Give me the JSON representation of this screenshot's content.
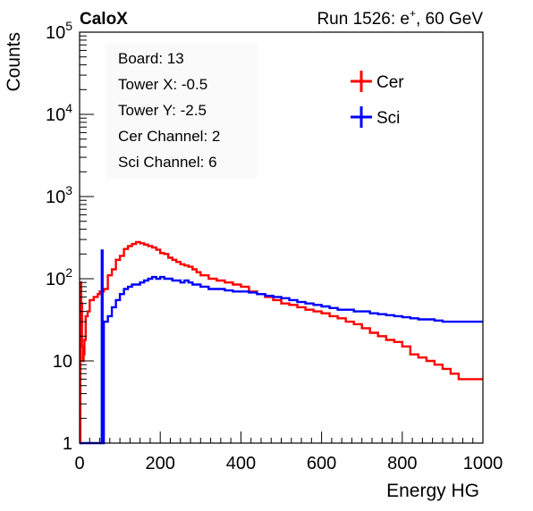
{
  "header": {
    "experiment": "CaloX",
    "run_prefix": "Run 1526: e",
    "run_sup": "+",
    "run_suffix": ", 60 GeV"
  },
  "info_box": [
    "Board: 13",
    "Tower X: -0.5",
    "Tower Y: -2.5",
    "Cer Channel: 2",
    "Sci Channel: 6"
  ],
  "chart_data": {
    "type": "line",
    "title": "",
    "xlabel": "Energy HG",
    "ylabel": "Counts",
    "xlim": [
      0,
      1000
    ],
    "ylim": [
      1,
      100000
    ],
    "yscale": "log",
    "grid": false,
    "legend_position": "top-right",
    "x_ticks": [
      0,
      200,
      400,
      600,
      800,
      1000
    ],
    "y_ticks": [
      {
        "base": "1",
        "exp": ""
      },
      {
        "base": "10",
        "exp": ""
      },
      {
        "base": "10",
        "exp": "2"
      },
      {
        "base": "10",
        "exp": "3"
      },
      {
        "base": "10",
        "exp": "4"
      },
      {
        "base": "10",
        "exp": "5"
      }
    ],
    "series": [
      {
        "name": "Cer",
        "color": "#ff0000",
        "x": [
          0,
          2,
          4,
          6,
          8,
          10,
          12,
          15,
          20,
          25,
          30,
          35,
          40,
          45,
          50,
          55,
          60,
          70,
          80,
          90,
          100,
          110,
          120,
          130,
          140,
          150,
          160,
          170,
          180,
          190,
          200,
          210,
          220,
          230,
          240,
          250,
          260,
          270,
          280,
          290,
          300,
          320,
          340,
          360,
          380,
          400,
          420,
          440,
          460,
          480,
          500,
          520,
          540,
          560,
          580,
          600,
          620,
          640,
          660,
          680,
          700,
          720,
          740,
          760,
          780,
          800,
          820,
          840,
          860,
          880,
          900,
          920,
          940,
          960,
          980,
          1000
        ],
        "y": [
          1,
          90,
          50,
          15,
          10,
          12,
          18,
          35,
          40,
          55,
          55,
          60,
          60,
          65,
          70,
          70,
          75,
          110,
          130,
          170,
          190,
          230,
          250,
          265,
          280,
          270,
          260,
          250,
          240,
          225,
          205,
          200,
          180,
          170,
          160,
          150,
          145,
          140,
          130,
          120,
          110,
          100,
          95,
          90,
          85,
          80,
          70,
          65,
          60,
          55,
          50,
          48,
          45,
          42,
          40,
          38,
          35,
          33,
          30,
          28,
          25,
          22,
          20,
          18,
          17,
          15,
          12,
          11,
          10,
          9,
          8,
          7,
          6,
          6,
          6,
          6
        ]
      },
      {
        "name": "Sci",
        "color": "#0000ff",
        "x": [
          0,
          40,
          50,
          55,
          57,
          60,
          70,
          80,
          90,
          100,
          110,
          120,
          130,
          140,
          150,
          160,
          170,
          180,
          190,
          200,
          210,
          220,
          230,
          240,
          250,
          260,
          270,
          280,
          290,
          300,
          320,
          340,
          360,
          380,
          400,
          420,
          440,
          460,
          480,
          500,
          520,
          540,
          560,
          580,
          600,
          620,
          640,
          660,
          680,
          700,
          720,
          740,
          760,
          780,
          800,
          820,
          840,
          860,
          880,
          900,
          920,
          940,
          960,
          980,
          1000
        ],
        "y": [
          1,
          1,
          1,
          220,
          1,
          30,
          35,
          45,
          55,
          65,
          75,
          80,
          85,
          85,
          90,
          95,
          100,
          105,
          100,
          105,
          100,
          100,
          95,
          95,
          90,
          95,
          90,
          85,
          85,
          80,
          75,
          75,
          72,
          70,
          70,
          68,
          65,
          62,
          60,
          58,
          55,
          52,
          50,
          48,
          46,
          44,
          42,
          42,
          40,
          40,
          38,
          37,
          36,
          35,
          34,
          33,
          32,
          32,
          31,
          30,
          30,
          30,
          30,
          30,
          30
        ]
      }
    ]
  }
}
